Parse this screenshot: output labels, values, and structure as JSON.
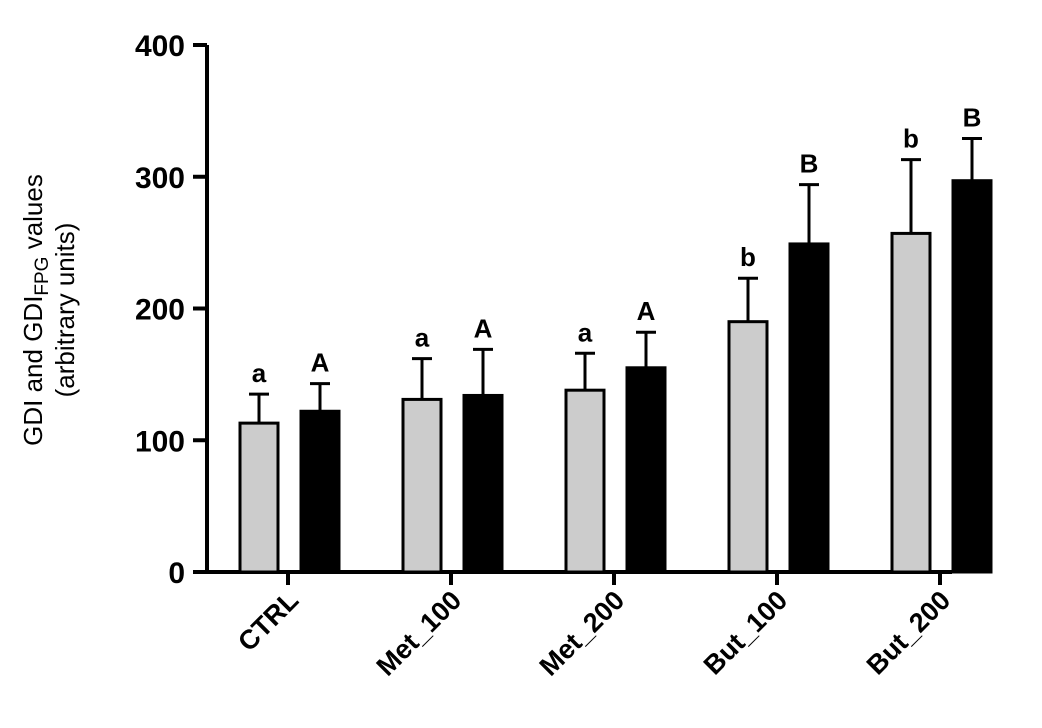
{
  "chart_data": {
    "type": "bar",
    "title": "",
    "xlabel": "",
    "ylabel_line1_main": "GDI and GDI",
    "ylabel_line1_sub": "FPG",
    "ylabel_line1_end": " values",
    "ylabel_line2": "(arbitrary units)",
    "ylim": [
      0,
      400
    ],
    "yticks": [
      "0",
      "100",
      "200",
      "300",
      "400"
    ],
    "grid": false,
    "categories": [
      "CTRL",
      "Met_100",
      "Met_200",
      "But_100",
      "But_200"
    ],
    "series": [
      {
        "color": "#cccccc",
        "values": [
          113,
          131,
          138,
          190,
          257
        ],
        "error_upper": [
          135,
          162,
          166,
          223,
          313
        ],
        "letters": [
          "a",
          "a",
          "a",
          "b",
          "b"
        ]
      },
      {
        "color": "#000000",
        "values": [
          122,
          134,
          155,
          249,
          297
        ],
        "error_upper": [
          143,
          169,
          182,
          294,
          329
        ],
        "letters": [
          "A",
          "A",
          "A",
          "B",
          "B"
        ]
      }
    ]
  }
}
